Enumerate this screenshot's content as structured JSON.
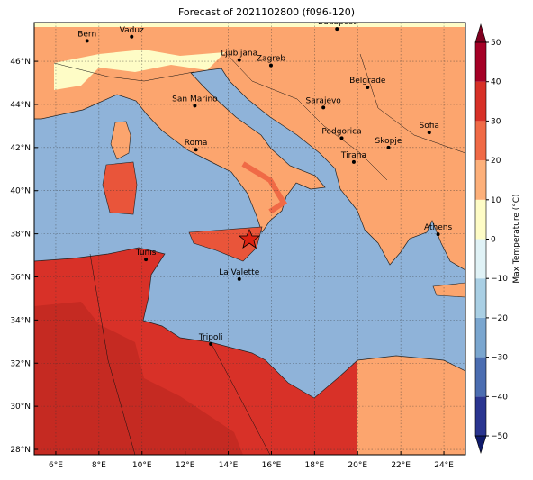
{
  "map": {
    "title": "Forecast of 2021102800 (f096-120)",
    "lonlim": [
      5,
      25
    ],
    "latlim": [
      27.75,
      47.8
    ],
    "lonticks": [
      {
        "value": 6,
        "label": "6°E"
      },
      {
        "value": 8,
        "label": "8°E"
      },
      {
        "value": 10,
        "label": "10°E"
      },
      {
        "value": 12,
        "label": "12°E"
      },
      {
        "value": 14,
        "label": "14°E"
      },
      {
        "value": 16,
        "label": "16°E"
      },
      {
        "value": 18,
        "label": "18°E"
      },
      {
        "value": 20,
        "label": "20°E"
      },
      {
        "value": 22,
        "label": "22°E"
      },
      {
        "value": 24,
        "label": "24°E"
      }
    ],
    "latticks": [
      {
        "value": 28,
        "label": "28°N"
      },
      {
        "value": 30,
        "label": "30°N"
      },
      {
        "value": 32,
        "label": "32°N"
      },
      {
        "value": 34,
        "label": "34°N"
      },
      {
        "value": 36,
        "label": "36°N"
      },
      {
        "value": 38,
        "label": "38°N"
      },
      {
        "value": 40,
        "label": "40°N"
      },
      {
        "value": 42,
        "label": "42°N"
      },
      {
        "value": 44,
        "label": "44°N"
      },
      {
        "value": 46,
        "label": "46°N"
      }
    ],
    "grid": true,
    "cities": [
      {
        "name": "Bern",
        "lon": 7.45,
        "lat": 46.95
      },
      {
        "name": "Vaduz",
        "lon": 9.52,
        "lat": 47.14
      },
      {
        "name": "Budapest",
        "lon": 19.04,
        "lat": 47.5
      },
      {
        "name": "Ljubljana",
        "lon": 14.51,
        "lat": 46.06
      },
      {
        "name": "Zagreb",
        "lon": 15.98,
        "lat": 45.81
      },
      {
        "name": "Belgrade",
        "lon": 20.46,
        "lat": 44.79
      },
      {
        "name": "San Marino",
        "lon": 12.45,
        "lat": 43.94
      },
      {
        "name": "Sarajevo",
        "lon": 18.41,
        "lat": 43.86
      },
      {
        "name": "Sofia",
        "lon": 23.32,
        "lat": 42.7
      },
      {
        "name": "Roma",
        "lon": 12.5,
        "lat": 41.9
      },
      {
        "name": "Podgorica",
        "lon": 19.26,
        "lat": 42.44
      },
      {
        "name": "Skopje",
        "lon": 21.43,
        "lat": 42.0
      },
      {
        "name": "Tirana",
        "lon": 19.82,
        "lat": 41.33
      },
      {
        "name": "Athens",
        "lon": 23.73,
        "lat": 37.98
      },
      {
        "name": "Tunis",
        "lon": 10.18,
        "lat": 36.81
      },
      {
        "name": "La Valette",
        "lon": 14.51,
        "lat": 35.9
      },
      {
        "name": "Tripoli",
        "lon": 13.19,
        "lat": 32.89
      }
    ]
  },
  "colorbar": {
    "label": "Max Temperature (°C)",
    "ticks": [
      {
        "value": -50,
        "label": "−50"
      },
      {
        "value": -40,
        "label": "−40"
      },
      {
        "value": -30,
        "label": "−30"
      },
      {
        "value": -20,
        "label": "−20"
      },
      {
        "value": -10,
        "label": "−10"
      },
      0,
      10,
      20,
      30,
      40,
      50
    ],
    "colors": [
      "#2a3590",
      "#4b6db1",
      "#7aa6cf",
      "#a9cfe4",
      "#e0f2f6",
      "#fefcc6",
      "#fdb07a",
      "#f06a46",
      "#d73027",
      "#a50026"
    ],
    "under": "#0f1a6b",
    "over": "#800020"
  }
}
